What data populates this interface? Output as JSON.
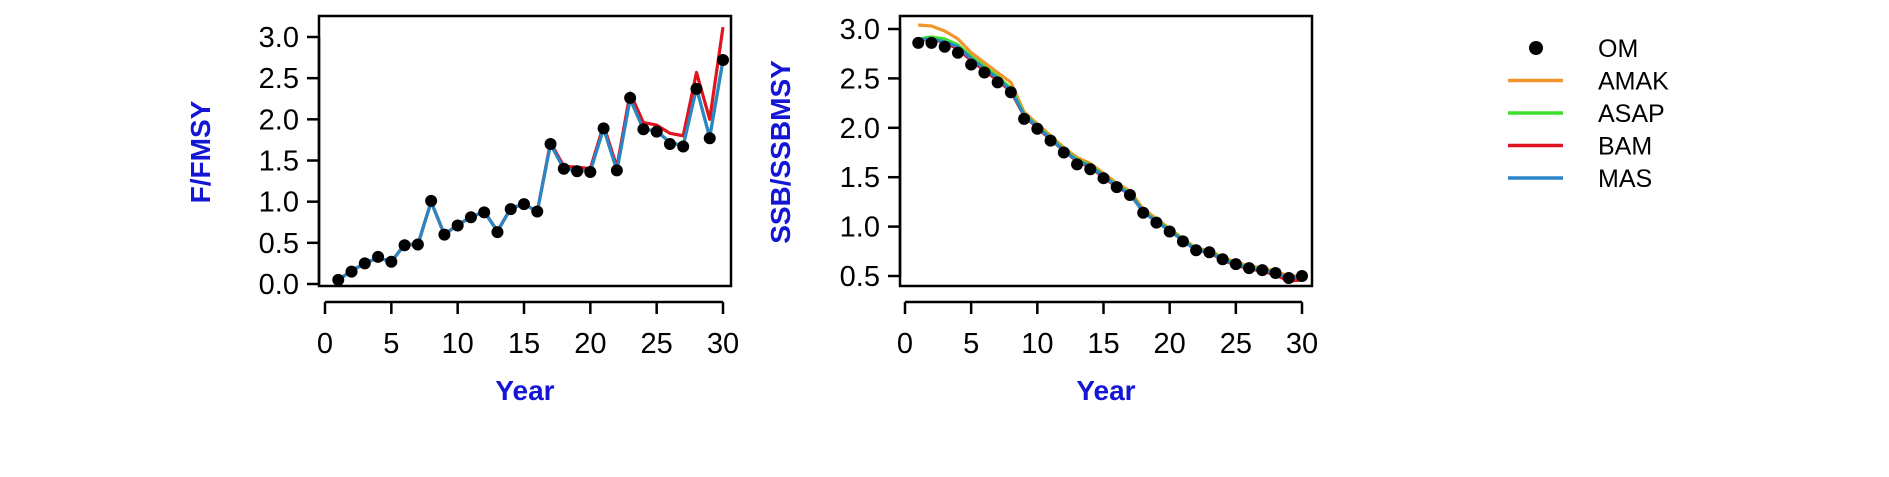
{
  "colors": {
    "axis_label": "#1515d6",
    "OM": "#000000",
    "AMAK": "#f0962a",
    "ASAP": "#3ee02e",
    "BAM": "#e0141e",
    "MAS": "#2a86c8"
  },
  "legend": {
    "items": [
      {
        "name": "OM",
        "kind": "point"
      },
      {
        "name": "AMAK",
        "kind": "line"
      },
      {
        "name": "ASAP",
        "kind": "line"
      },
      {
        "name": "BAM",
        "kind": "line"
      },
      {
        "name": "MAS",
        "kind": "line"
      }
    ]
  },
  "chart_data": [
    {
      "type": "line",
      "xlabel": "Year",
      "ylabel": "F/FMSY",
      "xlim": [
        0,
        30
      ],
      "ylim": [
        0,
        3.1
      ],
      "xticks": [
        "0",
        "5",
        "10",
        "15",
        "20",
        "25",
        "30"
      ],
      "yticks": [
        "0.0",
        "0.5",
        "1.0",
        "1.5",
        "2.0",
        "2.5",
        "3.0"
      ],
      "grid": false,
      "x": [
        1,
        2,
        3,
        4,
        5,
        6,
        7,
        8,
        9,
        10,
        11,
        12,
        13,
        14,
        15,
        16,
        17,
        18,
        19,
        20,
        21,
        22,
        23,
        24,
        25,
        26,
        27,
        28,
        29,
        30
      ],
      "series": [
        {
          "name": "AMAK",
          "values": [
            0.05,
            0.16,
            0.25,
            0.32,
            0.27,
            0.48,
            0.48,
            1.0,
            0.6,
            0.72,
            0.81,
            0.88,
            0.64,
            0.92,
            0.97,
            0.88,
            1.7,
            1.4,
            1.38,
            1.37,
            1.89,
            1.38,
            2.25,
            1.88,
            1.86,
            1.72,
            1.68,
            2.38,
            1.78,
            2.72
          ]
        },
        {
          "name": "ASAP",
          "values": [
            0.05,
            0.16,
            0.25,
            0.32,
            0.27,
            0.48,
            0.48,
            1.0,
            0.6,
            0.72,
            0.81,
            0.88,
            0.64,
            0.92,
            0.97,
            0.88,
            1.7,
            1.4,
            1.38,
            1.37,
            1.89,
            1.38,
            2.25,
            1.88,
            1.86,
            1.72,
            1.68,
            2.38,
            1.78,
            2.72
          ]
        },
        {
          "name": "BAM",
          "values": [
            0.05,
            0.16,
            0.25,
            0.32,
            0.27,
            0.48,
            0.48,
            1.0,
            0.6,
            0.72,
            0.81,
            0.88,
            0.64,
            0.92,
            0.97,
            0.88,
            1.72,
            1.43,
            1.42,
            1.4,
            1.93,
            1.42,
            2.32,
            1.96,
            1.93,
            1.83,
            1.8,
            2.57,
            2.0,
            3.12
          ]
        },
        {
          "name": "MAS",
          "values": [
            0.05,
            0.16,
            0.25,
            0.32,
            0.27,
            0.48,
            0.48,
            1.0,
            0.6,
            0.72,
            0.81,
            0.88,
            0.64,
            0.92,
            0.97,
            0.88,
            1.7,
            1.4,
            1.38,
            1.37,
            1.89,
            1.38,
            2.25,
            1.88,
            1.86,
            1.72,
            1.68,
            2.38,
            1.78,
            2.72
          ]
        }
      ],
      "points": {
        "name": "OM",
        "values": [
          0.05,
          0.15,
          0.25,
          0.33,
          0.27,
          0.47,
          0.48,
          1.01,
          0.6,
          0.71,
          0.81,
          0.87,
          0.63,
          0.91,
          0.97,
          0.88,
          1.7,
          1.4,
          1.37,
          1.36,
          1.89,
          1.38,
          2.26,
          1.88,
          1.85,
          1.7,
          1.67,
          2.37,
          1.77,
          2.72
        ]
      }
    },
    {
      "type": "line",
      "xlabel": "Year",
      "ylabel": "SSB/SSBMSY",
      "xlim": [
        0,
        30
      ],
      "ylim": [
        0.3,
        3.1
      ],
      "xticks": [
        "0",
        "5",
        "10",
        "15",
        "20",
        "25",
        "30"
      ],
      "yticks": [
        "0.5",
        "1.0",
        "1.5",
        "2.0",
        "2.5",
        "3.0"
      ],
      "grid": false,
      "x": [
        1,
        2,
        3,
        4,
        5,
        6,
        7,
        8,
        9,
        10,
        11,
        12,
        13,
        14,
        15,
        16,
        17,
        18,
        19,
        20,
        21,
        22,
        23,
        24,
        25,
        26,
        27,
        28,
        29,
        30
      ],
      "series": [
        {
          "name": "AMAK",
          "values": [
            3.04,
            3.03,
            2.98,
            2.9,
            2.76,
            2.66,
            2.56,
            2.46,
            2.16,
            2.04,
            1.92,
            1.8,
            1.7,
            1.64,
            1.54,
            1.44,
            1.36,
            1.18,
            1.08,
            0.98,
            0.88,
            0.78,
            0.76,
            0.69,
            0.64,
            0.6,
            0.58,
            0.55,
            0.5,
            0.5
          ]
        },
        {
          "name": "ASAP",
          "values": [
            2.9,
            2.92,
            2.9,
            2.84,
            2.72,
            2.62,
            2.52,
            2.4,
            2.14,
            2.02,
            1.9,
            1.78,
            1.68,
            1.62,
            1.52,
            1.42,
            1.34,
            1.16,
            1.06,
            0.97,
            0.87,
            0.77,
            0.75,
            0.68,
            0.63,
            0.59,
            0.57,
            0.53,
            0.47,
            0.48
          ]
        },
        {
          "name": "BAM",
          "values": [
            2.88,
            2.9,
            2.86,
            2.8,
            2.68,
            2.58,
            2.48,
            2.37,
            2.12,
            2.0,
            1.88,
            1.77,
            1.66,
            1.6,
            1.5,
            1.4,
            1.33,
            1.15,
            1.05,
            0.96,
            0.86,
            0.76,
            0.74,
            0.66,
            0.61,
            0.57,
            0.55,
            0.51,
            0.45,
            0.46
          ]
        },
        {
          "name": "MAS",
          "values": [
            2.89,
            2.9,
            2.87,
            2.82,
            2.7,
            2.6,
            2.5,
            2.38,
            2.13,
            2.01,
            1.89,
            1.77,
            1.67,
            1.61,
            1.51,
            1.41,
            1.33,
            1.15,
            1.05,
            0.96,
            0.86,
            0.76,
            0.74,
            0.67,
            0.62,
            0.58,
            0.56,
            0.53,
            0.48,
            0.5
          ]
        }
      ],
      "points": {
        "name": "OM",
        "values": [
          2.86,
          2.86,
          2.82,
          2.76,
          2.64,
          2.56,
          2.46,
          2.36,
          2.09,
          1.99,
          1.87,
          1.75,
          1.63,
          1.58,
          1.49,
          1.4,
          1.32,
          1.14,
          1.04,
          0.95,
          0.85,
          0.76,
          0.74,
          0.67,
          0.62,
          0.58,
          0.56,
          0.53,
          0.48,
          0.5
        ]
      }
    }
  ]
}
